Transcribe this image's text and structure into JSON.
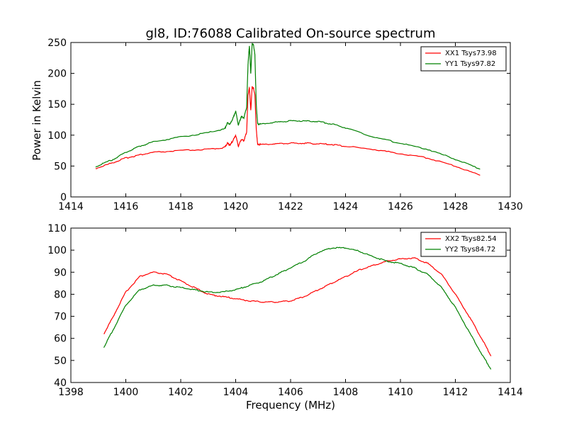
{
  "chart_data": [
    {
      "type": "line",
      "title": "gl8, ID:76088 Calibrated On-source spectrum",
      "xlabel": "",
      "ylabel": "Power in Kelvin",
      "xlim": [
        1414,
        1430
      ],
      "ylim": [
        0,
        250
      ],
      "xticks": [
        1414,
        1416,
        1418,
        1420,
        1422,
        1424,
        1426,
        1428,
        1430
      ],
      "yticks": [
        0,
        50,
        100,
        150,
        200,
        250
      ],
      "legend_position": "top-right",
      "grid": false,
      "series": [
        {
          "name": "XX1 Tsys73.98",
          "color": "#ff0000",
          "x": [
            1414.9,
            1415.5,
            1416.0,
            1416.5,
            1417.0,
            1418.0,
            1419.0,
            1419.6,
            1419.7,
            1419.8,
            1419.9,
            1420.0,
            1420.1,
            1420.2,
            1420.3,
            1420.4,
            1420.45,
            1420.5,
            1420.55,
            1420.6,
            1420.65,
            1420.7,
            1420.75,
            1420.8,
            1420.9,
            1421.5,
            1422.0,
            1422.5,
            1423.0,
            1423.5,
            1424.0,
            1425.0,
            1426.0,
            1427.0,
            1428.0,
            1428.9
          ],
          "y": [
            46,
            55,
            63,
            68,
            72,
            75,
            77,
            80,
            87,
            84,
            91,
            100,
            82,
            93,
            91,
            105,
            165,
            177,
            140,
            178,
            176,
            165,
            110,
            85,
            85,
            86,
            87,
            87,
            86,
            85,
            82,
            77,
            70,
            63,
            50,
            35
          ]
        },
        {
          "name": "YY1 Tsys97.82",
          "color": "#008000",
          "x": [
            1414.9,
            1415.5,
            1416.0,
            1416.5,
            1417.0,
            1418.0,
            1419.0,
            1419.6,
            1419.7,
            1419.8,
            1419.9,
            1420.0,
            1420.1,
            1420.2,
            1420.3,
            1420.4,
            1420.45,
            1420.5,
            1420.55,
            1420.6,
            1420.65,
            1420.7,
            1420.75,
            1420.8,
            1420.9,
            1421.5,
            1422.0,
            1422.5,
            1423.0,
            1423.5,
            1424.0,
            1425.0,
            1426.0,
            1427.0,
            1428.0,
            1428.9
          ],
          "y": [
            49,
            60,
            72,
            82,
            89,
            97,
            104,
            110,
            120,
            118,
            127,
            139,
            116,
            130,
            128,
            145,
            215,
            245,
            200,
            248,
            246,
            230,
            150,
            118,
            118,
            121,
            123,
            123,
            122,
            118,
            112,
            97,
            87,
            77,
            61,
            45
          ]
        }
      ]
    },
    {
      "type": "line",
      "title": "",
      "xlabel": "Frequency (MHz)",
      "ylabel": "",
      "xlim": [
        1398,
        1414
      ],
      "ylim": [
        40,
        110
      ],
      "xticks": [
        1398,
        1400,
        1402,
        1404,
        1406,
        1408,
        1410,
        1412,
        1414
      ],
      "yticks": [
        40,
        50,
        60,
        70,
        80,
        90,
        100,
        110
      ],
      "legend_position": "top-right",
      "grid": false,
      "series": [
        {
          "name": "XX2 Tsys82.54",
          "color": "#ff0000",
          "x": [
            1399.2,
            1399.5,
            1400.0,
            1400.5,
            1401.0,
            1401.5,
            1402.0,
            1402.5,
            1403.0,
            1403.5,
            1404.0,
            1404.5,
            1405.0,
            1405.5,
            1406.0,
            1406.5,
            1407.0,
            1407.5,
            1408.0,
            1408.5,
            1409.0,
            1409.5,
            1410.0,
            1410.5,
            1411.0,
            1411.5,
            1412.0,
            1412.5,
            1413.0,
            1413.3
          ],
          "y": [
            62,
            69,
            81,
            88,
            90,
            89,
            86,
            83,
            80,
            79,
            78,
            77,
            76.5,
            76.5,
            77,
            79,
            82,
            85,
            88,
            91,
            93,
            95,
            96,
            96.5,
            94,
            89,
            80,
            70,
            59,
            52
          ]
        },
        {
          "name": "YY2 Tsys84.72",
          "color": "#008000",
          "x": [
            1399.2,
            1399.5,
            1400.0,
            1400.5,
            1401.0,
            1401.5,
            1402.0,
            1402.5,
            1403.0,
            1403.5,
            1404.0,
            1404.5,
            1405.0,
            1405.5,
            1406.0,
            1406.5,
            1407.0,
            1407.5,
            1408.0,
            1408.5,
            1409.0,
            1409.5,
            1410.0,
            1410.5,
            1411.0,
            1411.5,
            1412.0,
            1412.5,
            1413.0,
            1413.3
          ],
          "y": [
            56,
            63,
            75,
            82,
            84,
            84,
            83,
            82,
            81,
            81,
            82,
            84,
            86,
            89,
            92,
            95,
            99,
            101,
            101,
            99.5,
            97,
            95,
            94,
            92,
            89,
            83,
            74,
            63,
            52,
            46
          ]
        }
      ]
    }
  ]
}
